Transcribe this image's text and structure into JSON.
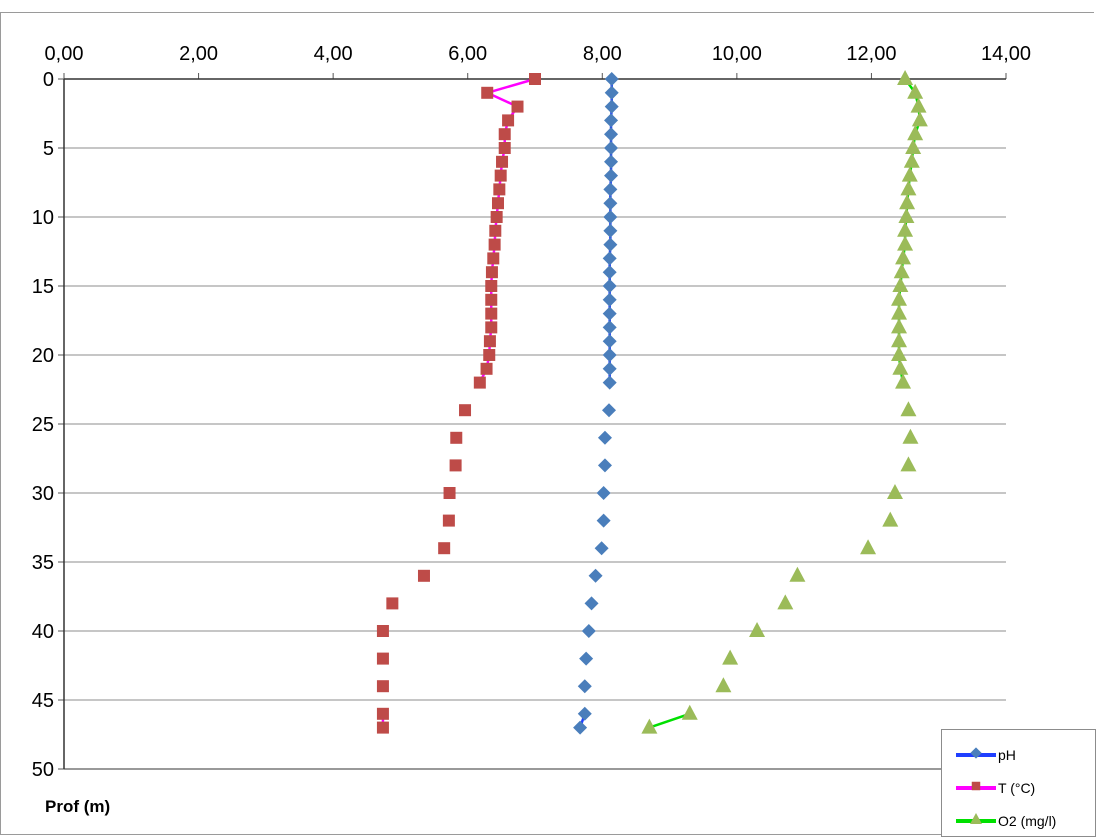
{
  "chart_data": {
    "type": "scatter",
    "title": "",
    "xlabel": "",
    "ylabel": "Prof (m)",
    "xlim": [
      0,
      14
    ],
    "ylim": [
      0,
      50
    ],
    "x_ticks": [
      "0,00",
      "2,00",
      "4,00",
      "6,00",
      "8,00",
      "10,00",
      "12,00",
      "14,00"
    ],
    "y_ticks": [
      "0",
      "5",
      "10",
      "15",
      "20",
      "25",
      "30",
      "35",
      "40",
      "45",
      "50"
    ],
    "y_inverted": true,
    "x_axis_position": "top",
    "grid": "horizontal",
    "legend_position": "bottom-right",
    "series": [
      {
        "name": "pH",
        "color": "#4a7ebb",
        "line_color": "#1f3fff",
        "marker": "diamond",
        "depths": [
          0,
          1,
          2,
          3,
          4,
          5,
          6,
          7,
          8,
          9,
          10,
          11,
          12,
          13,
          14,
          15,
          16,
          17,
          18,
          19,
          20,
          21,
          22,
          24,
          26,
          28,
          30,
          32,
          34,
          36,
          38,
          40,
          42,
          44,
          46,
          47
        ],
        "values": [
          8.14,
          8.14,
          8.14,
          8.13,
          8.13,
          8.13,
          8.13,
          8.13,
          8.12,
          8.12,
          8.12,
          8.12,
          8.12,
          8.11,
          8.11,
          8.11,
          8.11,
          8.11,
          8.11,
          8.11,
          8.11,
          8.11,
          8.11,
          8.1,
          8.04,
          8.04,
          8.02,
          8.02,
          7.99,
          7.9,
          7.84,
          7.8,
          7.76,
          7.74,
          7.74,
          7.67
        ]
      },
      {
        "name": "T (°C)",
        "color": "#be4b48",
        "line_color": "#ff00ff",
        "marker": "square",
        "depths": [
          0,
          1,
          2,
          3,
          4,
          5,
          6,
          7,
          8,
          9,
          10,
          11,
          12,
          13,
          14,
          15,
          16,
          17,
          18,
          19,
          20,
          21,
          22,
          24,
          26,
          28,
          30,
          32,
          34,
          36,
          38,
          40,
          42,
          44,
          46,
          47
        ],
        "values": [
          7.0,
          6.29,
          6.74,
          6.6,
          6.55,
          6.55,
          6.51,
          6.49,
          6.47,
          6.45,
          6.43,
          6.41,
          6.4,
          6.38,
          6.36,
          6.35,
          6.35,
          6.35,
          6.35,
          6.33,
          6.32,
          6.28,
          6.18,
          5.96,
          5.83,
          5.82,
          5.73,
          5.72,
          5.65,
          5.35,
          4.88,
          4.74,
          4.74,
          4.74,
          4.74,
          4.74
        ]
      },
      {
        "name": "O2 (mg/l)",
        "color": "#9bbb59",
        "line_color": "#00e000",
        "marker": "triangle",
        "depths": [
          0,
          1,
          2,
          3,
          4,
          5,
          6,
          7,
          8,
          9,
          10,
          11,
          12,
          13,
          14,
          15,
          16,
          17,
          18,
          19,
          20,
          21,
          22,
          24,
          26,
          28,
          30,
          32,
          34,
          36,
          38,
          40,
          42,
          44,
          46,
          47
        ],
        "values": [
          12.5,
          12.65,
          12.7,
          12.72,
          12.65,
          12.62,
          12.6,
          12.57,
          12.55,
          12.53,
          12.52,
          12.5,
          12.5,
          12.47,
          12.45,
          12.43,
          12.41,
          12.41,
          12.41,
          12.41,
          12.41,
          12.43,
          12.47,
          12.55,
          12.58,
          12.55,
          12.35,
          12.28,
          11.95,
          10.9,
          10.72,
          10.3,
          9.9,
          9.8,
          9.3,
          8.7
        ]
      }
    ]
  }
}
